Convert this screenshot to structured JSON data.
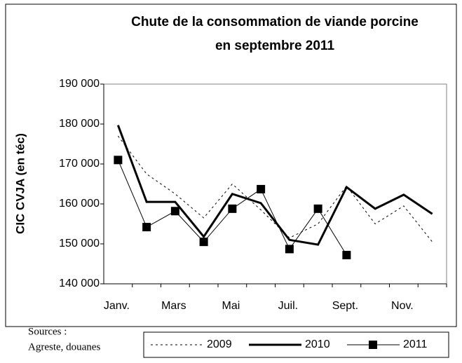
{
  "chart_data": {
    "type": "line",
    "title": [
      "Chute de la consommation de viande porcine",
      "en septembre 2011"
    ],
    "ylabel": "CIC CVJA (en téc)",
    "note": [
      "Sources :",
      "Agreste, douanes"
    ],
    "categories": [
      "Janv.",
      null,
      "Mars",
      null,
      "Mai",
      null,
      "Juil.",
      null,
      "Sept.",
      null,
      "Nov.",
      null
    ],
    "ylim": [
      140000,
      190000
    ],
    "yticks": [
      {
        "value": 140000,
        "label": "140 000"
      },
      {
        "value": 150000,
        "label": "150 000"
      },
      {
        "value": 160000,
        "label": "160 000"
      },
      {
        "value": 170000,
        "label": "170 000"
      },
      {
        "value": 180000,
        "label": "180 000"
      },
      {
        "value": 190000,
        "label": "190 000"
      }
    ],
    "series": [
      {
        "name": "2009",
        "color": "#000000",
        "style": "dotted",
        "values": [
          177000,
          167500,
          162500,
          156500,
          165000,
          158500,
          151500,
          155000,
          164500,
          155000,
          159500,
          150500
        ]
      },
      {
        "name": "2010",
        "color": "#000000",
        "style": "bold",
        "values": [
          179700,
          160500,
          160500,
          151800,
          162500,
          160200,
          151000,
          149800,
          164200,
          158800,
          162300,
          157500
        ]
      },
      {
        "name": "2011",
        "color": "#000000",
        "style": "square",
        "values": [
          171000,
          154200,
          158200,
          150500,
          158800,
          163700,
          148700,
          158800,
          147200,
          null,
          null,
          null
        ]
      }
    ]
  }
}
